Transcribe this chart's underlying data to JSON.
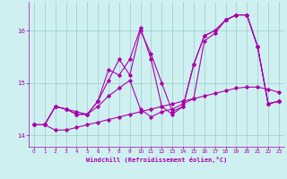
{
  "xlabel": "Windchill (Refroidissement éolien,°C)",
  "bg_color": "#cff0f0",
  "line_color": "#aa00aa",
  "grid_color": "#99cccc",
  "xlim": [
    -0.5,
    23.5
  ],
  "ylim": [
    13.78,
    16.55
  ],
  "yticks": [
    14,
    15,
    16
  ],
  "xticks": [
    0,
    1,
    2,
    3,
    4,
    5,
    6,
    7,
    8,
    9,
    10,
    11,
    12,
    13,
    14,
    15,
    16,
    17,
    18,
    19,
    20,
    21,
    22,
    23
  ],
  "series": [
    {
      "x": [
        0,
        1,
        2,
        3,
        4,
        5,
        6,
        7,
        8,
        9,
        10,
        11,
        12,
        13,
        14,
        15,
        16,
        17,
        18,
        19,
        20,
        21,
        22,
        23
      ],
      "y": [
        14.2,
        14.2,
        14.1,
        14.1,
        14.15,
        14.2,
        14.25,
        14.3,
        14.35,
        14.4,
        14.45,
        14.5,
        14.55,
        14.6,
        14.65,
        14.7,
        14.75,
        14.8,
        14.85,
        14.9,
        14.92,
        14.92,
        14.88,
        14.82
      ]
    },
    {
      "x": [
        0,
        1,
        2,
        3,
        4,
        5,
        6,
        7,
        8,
        9,
        10,
        11,
        12,
        13,
        14,
        15,
        16,
        17,
        18,
        19,
        20,
        21,
        22,
        23
      ],
      "y": [
        14.2,
        14.2,
        14.55,
        14.5,
        14.45,
        14.4,
        14.55,
        14.75,
        14.9,
        15.05,
        14.5,
        14.35,
        14.45,
        14.5,
        14.6,
        14.7,
        15.8,
        15.95,
        16.2,
        16.3,
        16.3,
        15.7,
        14.6,
        14.65
      ]
    },
    {
      "x": [
        0,
        1,
        2,
        3,
        4,
        5,
        6,
        7,
        8,
        9,
        10,
        11,
        12,
        13,
        14,
        15,
        16,
        17,
        18,
        19,
        20,
        21,
        22,
        23
      ],
      "y": [
        14.2,
        14.2,
        14.55,
        14.5,
        14.4,
        14.4,
        14.65,
        15.05,
        15.45,
        15.15,
        16.0,
        15.55,
        15.0,
        14.45,
        14.55,
        15.35,
        15.9,
        16.0,
        16.2,
        16.3,
        16.3,
        15.7,
        14.6,
        14.65
      ]
    },
    {
      "x": [
        0,
        1,
        2,
        3,
        4,
        5,
        6,
        7,
        8,
        9,
        10,
        11,
        12,
        13,
        14,
        15,
        16,
        17,
        18,
        19,
        20,
        21,
        22,
        23
      ],
      "y": [
        14.2,
        14.2,
        14.55,
        14.5,
        14.4,
        14.4,
        14.65,
        15.25,
        15.15,
        15.45,
        16.05,
        15.45,
        14.55,
        14.4,
        14.55,
        15.35,
        15.9,
        16.0,
        16.2,
        16.3,
        16.3,
        15.7,
        14.6,
        14.65
      ]
    }
  ]
}
